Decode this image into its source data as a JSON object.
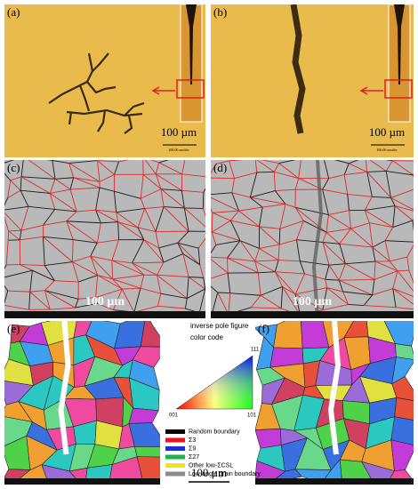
{
  "panels": [
    {
      "label": "(a)",
      "scale_bar": "100 µm",
      "inset_scale": "100.00 um/div"
    },
    {
      "label": "(b)",
      "scale_bar": "100 µm",
      "inset_scale": "100.00 um/div"
    },
    {
      "label": "(c)",
      "scale_bar": "100 µm"
    },
    {
      "label": "(d)",
      "scale_bar": "100 µm"
    },
    {
      "label": "(e)"
    },
    {
      "label": "(f)"
    }
  ],
  "legend": {
    "title": [
      "inverse pole figure",
      "color code"
    ],
    "ipf_corners": [
      "111",
      "001",
      "101"
    ],
    "boundaries": [
      {
        "label": "Random boundary",
        "color": "#000000"
      },
      {
        "label": "Σ3",
        "color": "#e8141c"
      },
      {
        "label": "Σ9",
        "color": "#1c2fd6"
      },
      {
        "label": "Σ27",
        "color": "#22b24c"
      },
      {
        "label": "Other low-ΣCSL",
        "color": "#f2e21a"
      },
      {
        "label": "Low-angle grain boundary",
        "color": "#8c8c8c"
      }
    ],
    "scale_bar": "100 µm"
  }
}
